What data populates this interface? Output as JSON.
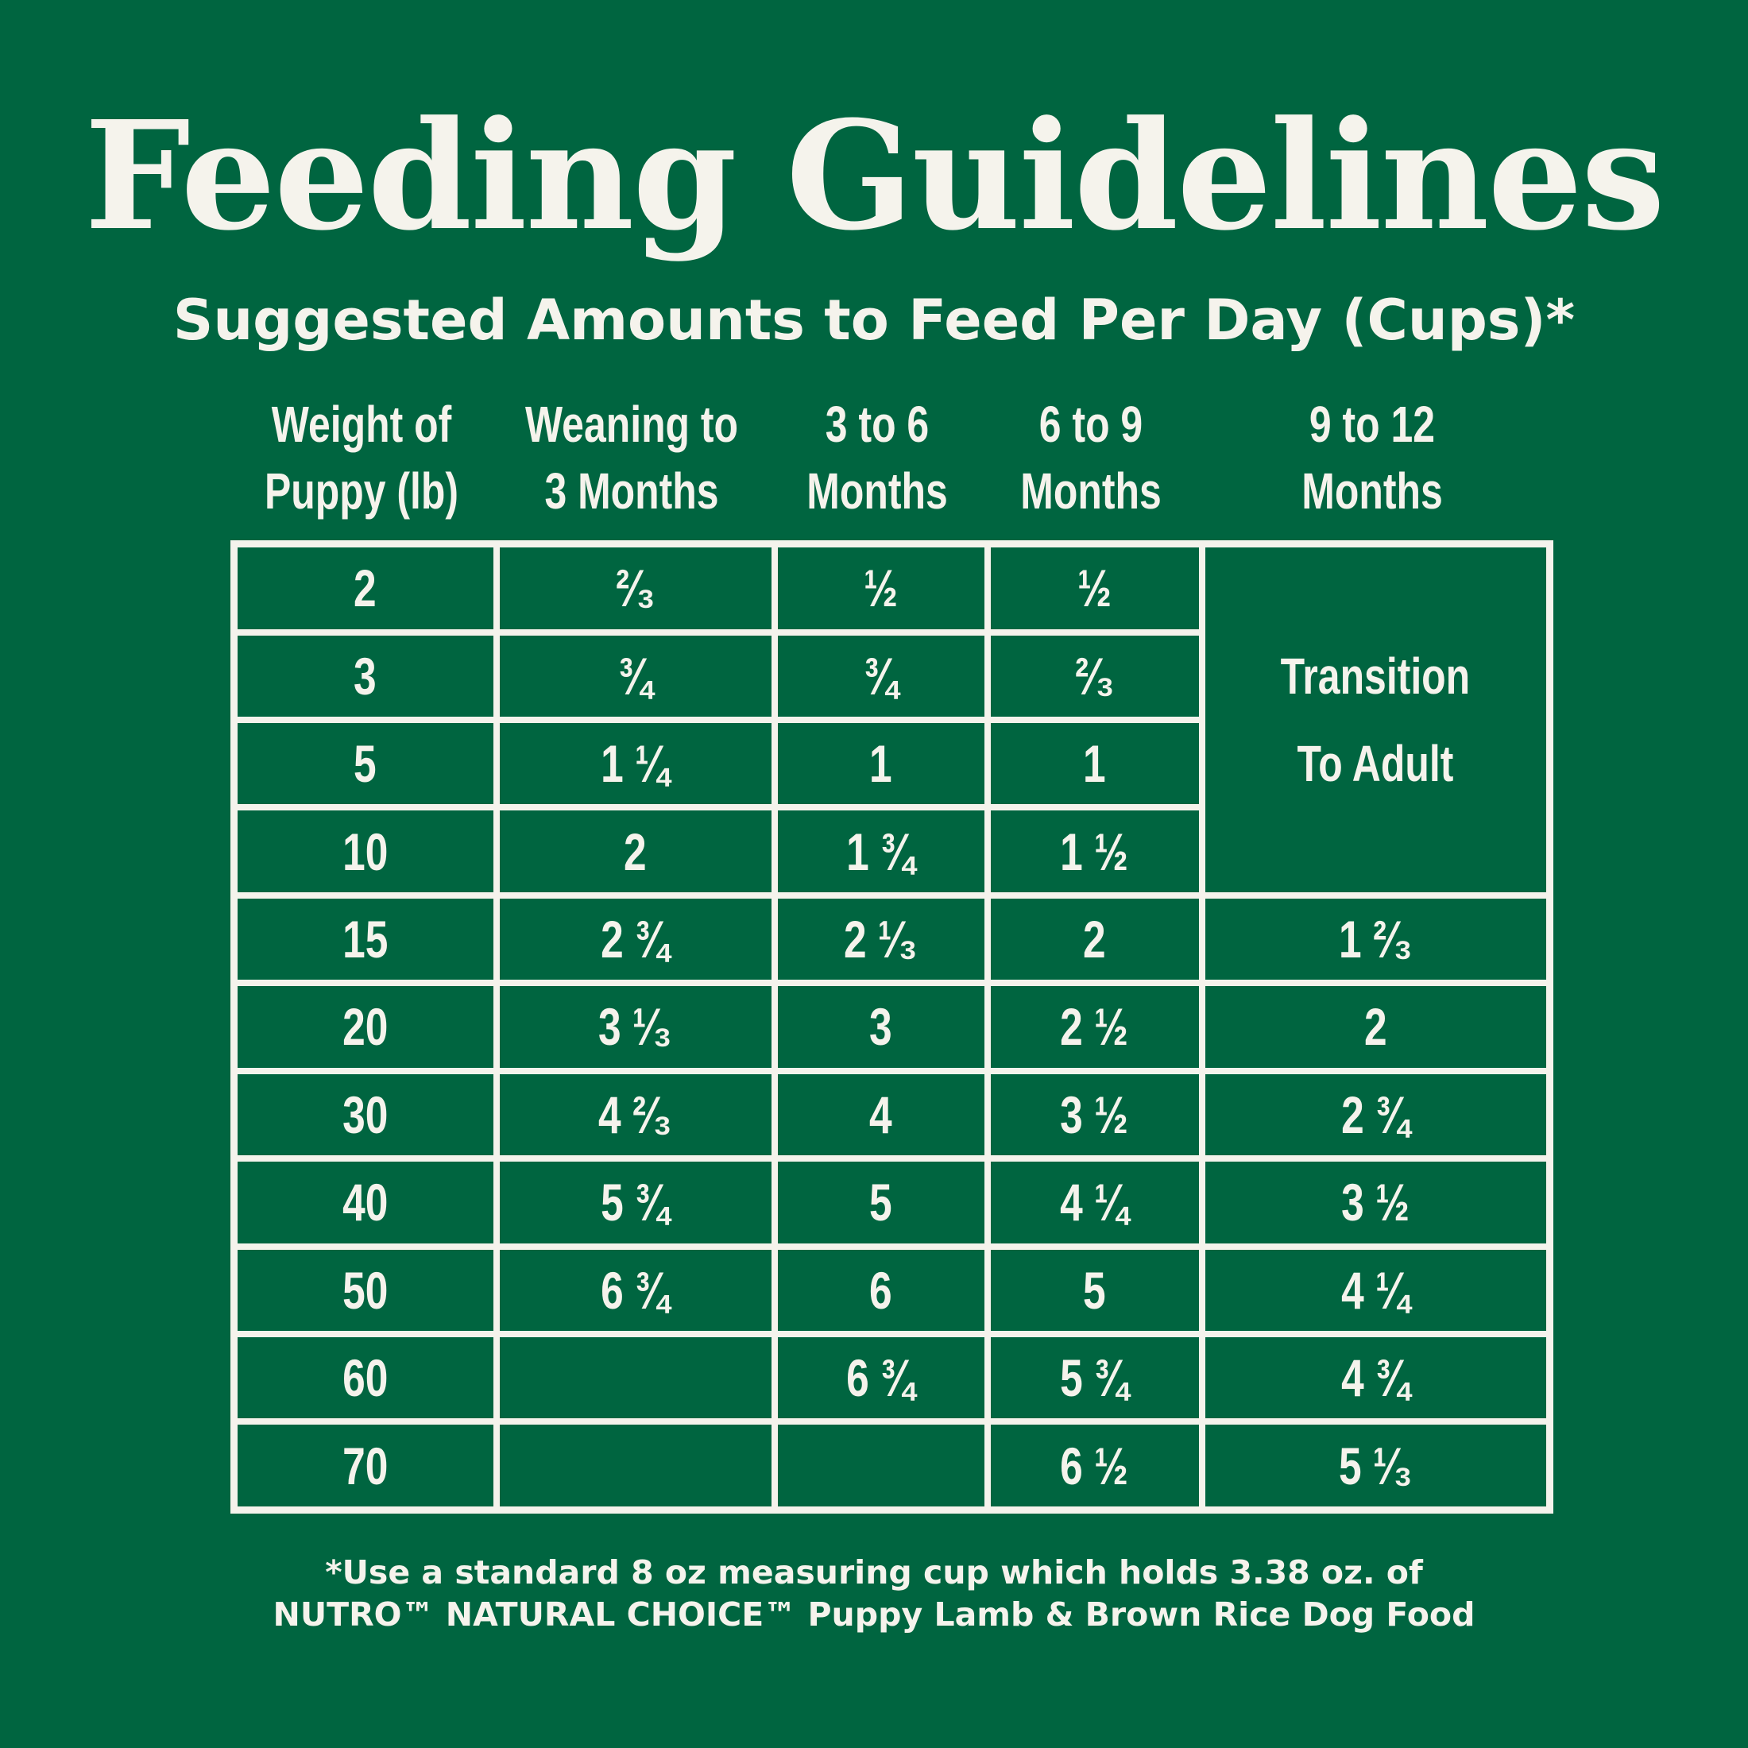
{
  "title": "Feeding Guidelines",
  "subtitle": "Suggested Amounts to Feed Per Day (Cups)*",
  "columns": [
    {
      "line1": "Weight of",
      "line2": "Puppy (lb)"
    },
    {
      "line1": "Weaning to",
      "line2": "3 Months"
    },
    {
      "line1": "3 to 6",
      "line2": "Months"
    },
    {
      "line1": "6 to 9",
      "line2": "Months"
    },
    {
      "line1": "9 to 12",
      "line2": "Months"
    }
  ],
  "transition": {
    "line1": "Transition",
    "line2": "To Adult"
  },
  "rows": [
    {
      "weight": "2",
      "weaning": "²⁄₃",
      "m3to6": "½",
      "m6to9": "½",
      "m9to12": ""
    },
    {
      "weight": "3",
      "weaning": "¾",
      "m3to6": "¾",
      "m6to9": "²⁄₃",
      "m9to12": ""
    },
    {
      "weight": "5",
      "weaning": "1 ¼",
      "m3to6": "1",
      "m6to9": "1",
      "m9to12": ""
    },
    {
      "weight": "10",
      "weaning": "2",
      "m3to6": "1 ¾",
      "m6to9": "1 ½",
      "m9to12": ""
    },
    {
      "weight": "15",
      "weaning": "2 ¾",
      "m3to6": "2 ¹⁄₃",
      "m6to9": "2",
      "m9to12": "1 ²⁄₃"
    },
    {
      "weight": "20",
      "weaning": "3 ¹⁄₃",
      "m3to6": "3",
      "m6to9": "2 ½",
      "m9to12": "2"
    },
    {
      "weight": "30",
      "weaning": "4 ²⁄₃",
      "m3to6": "4",
      "m6to9": "3 ½",
      "m9to12": "2 ¾"
    },
    {
      "weight": "40",
      "weaning": "5 ¾",
      "m3to6": "5",
      "m6to9": "4 ¼",
      "m9to12": "3 ½"
    },
    {
      "weight": "50",
      "weaning": "6 ¾",
      "m3to6": "6",
      "m6to9": "5",
      "m9to12": "4 ¼"
    },
    {
      "weight": "60",
      "weaning": "",
      "m3to6": "6 ¾",
      "m6to9": "5 ¾",
      "m9to12": "4 ¾"
    },
    {
      "weight": "70",
      "weaning": "",
      "m3to6": "",
      "m6to9": "6 ½",
      "m9to12": "5 ¹⁄₃"
    }
  ],
  "footnote": {
    "line1": "*Use a standard 8 oz measuring cup which holds 3.38 oz. of",
    "line2": "NUTRO™ NATURAL CHOICE™ Puppy Lamb & Brown Rice Dog Food"
  },
  "colors": {
    "background": "#006540",
    "text": "#f5f3ec"
  }
}
